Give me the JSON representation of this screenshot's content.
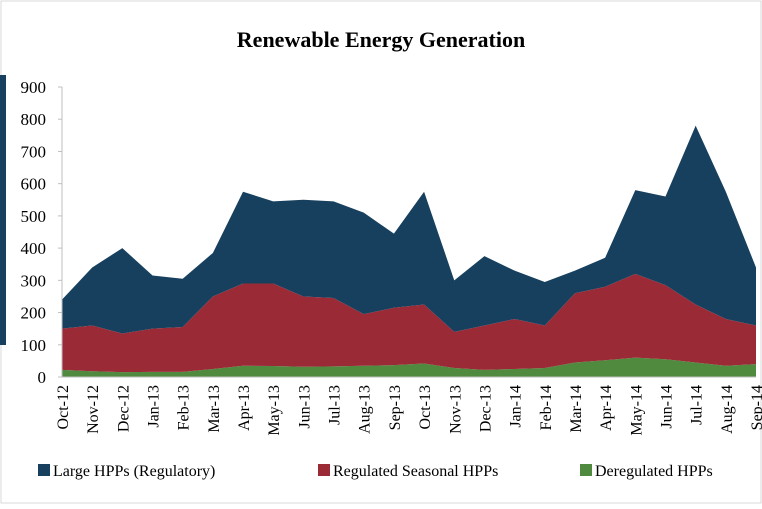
{
  "chart_data": {
    "type": "stacked-area",
    "title": "Renewable Energy Generation",
    "categories": [
      "Oct-12",
      "Nov-12",
      "Dec-12",
      "Jan-13",
      "Feb-13",
      "Mar-13",
      "Apr-13",
      "May-13",
      "Jun-13",
      "Jul-13",
      "Aug-13",
      "Sep-13",
      "Oct-13",
      "Nov-13",
      "Dec-13",
      "Jan-14",
      "Feb-14",
      "Mar-14",
      "Apr-14",
      "May-14",
      "Jun-14",
      "Jul-14",
      "Aug-14",
      "Sep-14"
    ],
    "series": [
      {
        "name": "Large HPPs (Regulatory)",
        "color": "#17405e",
        "values": [
          90,
          180,
          265,
          165,
          150,
          135,
          285,
          255,
          300,
          300,
          315,
          230,
          350,
          160,
          215,
          150,
          135,
          70,
          90,
          260,
          275,
          555,
          395,
          180
        ]
      },
      {
        "name": "Regulated Seasonal HPPs",
        "color": "#9b2a37",
        "values": [
          128,
          142,
          120,
          134,
          139,
          225,
          255,
          256,
          218,
          212,
          160,
          178,
          183,
          112,
          138,
          155,
          132,
          215,
          228,
          260,
          230,
          180,
          145,
          120
        ]
      },
      {
        "name": "Deregulated HPPs",
        "color": "#4f8a3f",
        "values": [
          22,
          18,
          15,
          16,
          16,
          25,
          35,
          34,
          32,
          33,
          35,
          37,
          42,
          28,
          22,
          25,
          28,
          45,
          52,
          60,
          55,
          45,
          35,
          40
        ]
      }
    ],
    "stack_order": "bottom-up from last series",
    "ylim": [
      0,
      900
    ],
    "yticks": [
      0,
      100,
      200,
      300,
      400,
      500,
      600,
      700,
      800,
      900
    ],
    "grid": false,
    "legend": "bottom"
  }
}
